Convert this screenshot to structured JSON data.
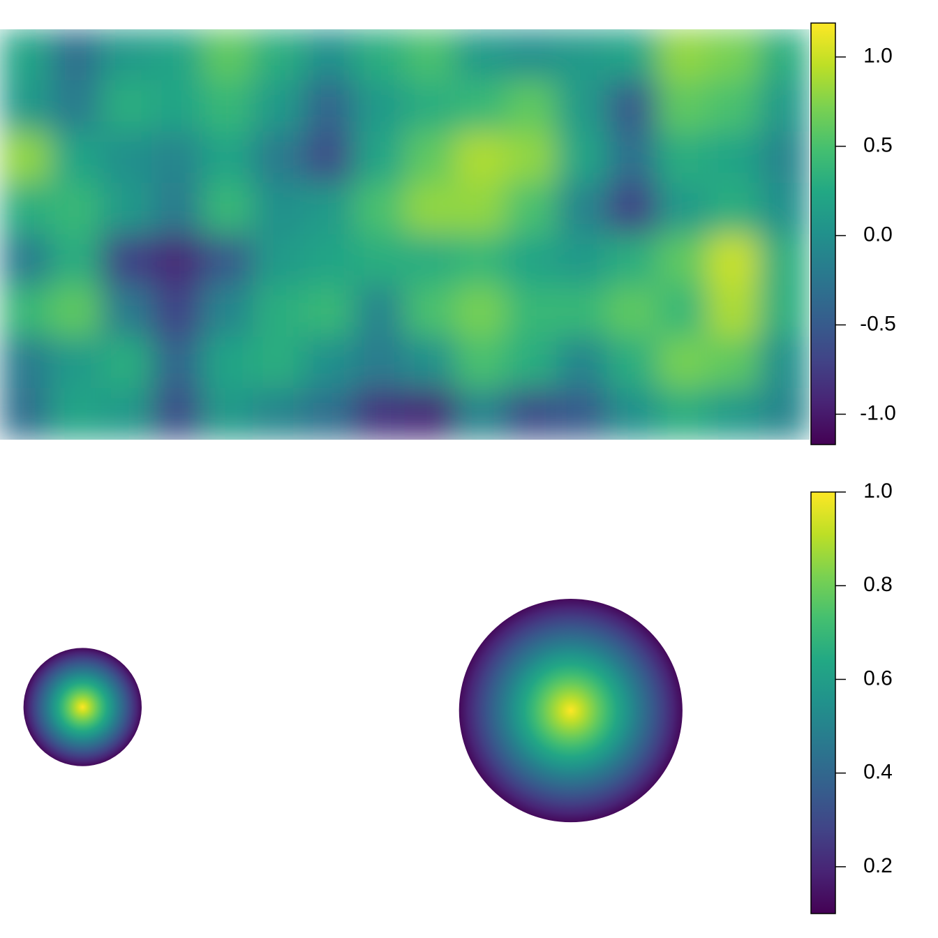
{
  "chart_data": [
    {
      "type": "heatmap",
      "colormap": "viridis",
      "values": [
        [
          0.2,
          -0.3,
          0.1,
          0.2,
          0.6,
          0.3,
          0.0,
          0.3,
          0.5,
          0.1,
          0.0,
          0.1,
          0.2,
          0.8,
          0.7,
          0.3
        ],
        [
          0.1,
          -0.2,
          0.3,
          0.2,
          0.4,
          0.1,
          -0.4,
          0.1,
          0.3,
          0.4,
          0.6,
          0.1,
          -0.5,
          0.6,
          0.5,
          0.1
        ],
        [
          0.8,
          0.2,
          0.0,
          -0.1,
          0.2,
          -0.2,
          -0.6,
          0.2,
          0.6,
          0.9,
          0.8,
          0.2,
          -0.3,
          0.3,
          0.2,
          -0.1
        ],
        [
          0.3,
          0.4,
          0.1,
          -0.2,
          0.4,
          0.0,
          0.1,
          0.5,
          0.8,
          0.8,
          0.5,
          -0.1,
          -0.7,
          0.1,
          0.3,
          0.0
        ],
        [
          -0.2,
          0.3,
          -0.7,
          -0.9,
          -0.5,
          0.1,
          0.2,
          0.3,
          0.3,
          0.4,
          0.2,
          0.1,
          0.3,
          0.6,
          1.0,
          0.3
        ],
        [
          0.4,
          0.6,
          -0.2,
          -0.7,
          -0.1,
          0.3,
          0.4,
          -0.1,
          0.5,
          0.7,
          0.4,
          0.4,
          0.6,
          0.4,
          0.9,
          0.3
        ],
        [
          -0.2,
          0.1,
          0.3,
          -0.4,
          0.2,
          0.3,
          0.0,
          -0.2,
          0.0,
          0.5,
          0.3,
          -0.1,
          0.3,
          0.7,
          0.6,
          0.0
        ],
        [
          -0.3,
          0.2,
          0.1,
          -0.6,
          0.1,
          -0.1,
          -0.3,
          -0.8,
          -0.9,
          -0.1,
          -0.6,
          -0.5,
          0.0,
          0.3,
          0.1,
          -0.1
        ]
      ],
      "zlim": [
        -1.17,
        1.19
      ],
      "zticks": [
        {
          "value": 1,
          "label": "1.0"
        },
        0.5,
        {
          "value": 0,
          "label": "0.0"
        },
        -0.5,
        {
          "value": -1,
          "label": "-1.0"
        }
      ]
    },
    {
      "type": "spots",
      "colormap": "viridis",
      "xlim": [
        0,
        1
      ],
      "ylim": [
        0,
        1
      ],
      "spots": [
        {
          "x": 0.102,
          "y": 0.495,
          "radius": 0.073,
          "peak": 1.0,
          "edge": 0.12
        },
        {
          "x": 0.705,
          "y": 0.487,
          "radius": 0.138,
          "peak": 1.0,
          "edge": 0.12
        }
      ],
      "zlim": [
        0.1,
        1.0
      ],
      "zticks": [
        {
          "value": 1,
          "label": "1.0"
        },
        0.8,
        0.6,
        0.4,
        0.2
      ]
    }
  ]
}
